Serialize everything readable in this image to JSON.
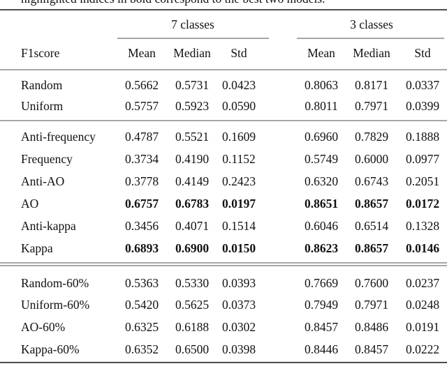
{
  "table": {
    "caption": "highlighted indices in bold correspond to the best two models.",
    "groups": [
      "7 classes",
      "3 classes"
    ],
    "columns": [
      "F1score",
      "Mean",
      "Median",
      "Std",
      "Mean",
      "Median",
      "Std"
    ],
    "sections": [
      [
        {
          "label": "Random",
          "bold": false,
          "cells": [
            "0.5662",
            "0.5731",
            "0.0423",
            "0.8063",
            "0.8171",
            "0.0337"
          ]
        },
        {
          "label": "Uniform",
          "bold": false,
          "cells": [
            "0.5757",
            "0.5923",
            "0.0590",
            "0.8011",
            "0.7971",
            "0.0399"
          ]
        }
      ],
      [
        {
          "label": "Anti-frequency",
          "bold": false,
          "cells": [
            "0.4787",
            "0.5521",
            "0.1609",
            "0.6960",
            "0.7829",
            "0.1888"
          ]
        },
        {
          "label": "Frequency",
          "bold": false,
          "cells": [
            "0.3734",
            "0.4190",
            "0.1152",
            "0.5749",
            "0.6000",
            "0.0977"
          ]
        },
        {
          "label": "Anti-AO",
          "bold": false,
          "cells": [
            "0.3778",
            "0.4149",
            "0.2423",
            "0.6320",
            "0.6743",
            "0.2051"
          ]
        },
        {
          "label": "AO",
          "bold": true,
          "cells": [
            "0.6757",
            "0.6783",
            "0.0197",
            "0.8651",
            "0.8657",
            "0.0172"
          ]
        },
        {
          "label": "Anti-kappa",
          "bold": false,
          "cells": [
            "0.3456",
            "0.4071",
            "0.1514",
            "0.6046",
            "0.6514",
            "0.1328"
          ]
        },
        {
          "label": "Kappa",
          "bold": true,
          "cells": [
            "0.6893",
            "0.6900",
            "0.0150",
            "0.8623",
            "0.8657",
            "0.0146"
          ]
        }
      ],
      [
        {
          "label": "Random-60%",
          "bold": false,
          "cells": [
            "0.5363",
            "0.5330",
            "0.0393",
            "0.7669",
            "0.7600",
            "0.0237"
          ]
        },
        {
          "label": "Uniform-60%",
          "bold": false,
          "cells": [
            "0.5420",
            "0.5625",
            "0.0373",
            "0.7949",
            "0.7971",
            "0.0248"
          ]
        },
        {
          "label": "AO-60%",
          "bold": false,
          "cells": [
            "0.6325",
            "0.6188",
            "0.0302",
            "0.8457",
            "0.8486",
            "0.0191"
          ]
        },
        {
          "label": "Kappa-60%",
          "bold": false,
          "cells": [
            "0.6352",
            "0.6500",
            "0.0398",
            "0.8446",
            "0.8457",
            "0.0222"
          ]
        }
      ]
    ]
  }
}
